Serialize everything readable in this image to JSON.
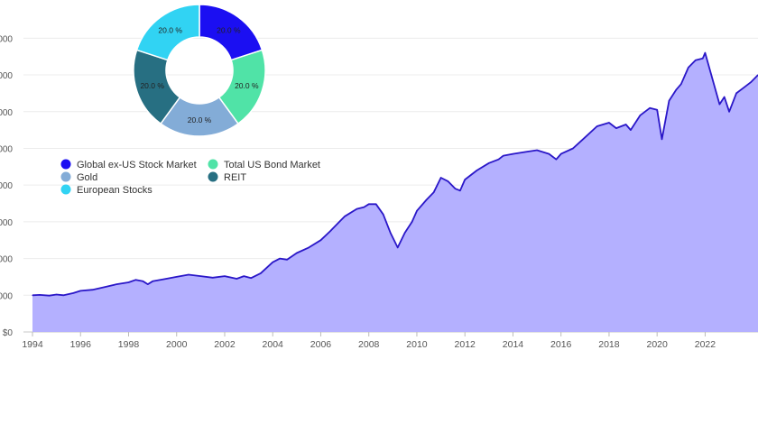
{
  "chart_data": [
    {
      "type": "area",
      "title": "",
      "xlabel": "",
      "ylabel": "",
      "y_tick_labels": [
        "$0",
        "000",
        "000",
        "000",
        "000",
        "000",
        "000",
        "000",
        "000"
      ],
      "y_tick_values": [
        0,
        1000,
        2000,
        3000,
        4000,
        5000,
        6000,
        7000,
        8000
      ],
      "ylim": [
        0,
        8500
      ],
      "xlim": [
        1994,
        2024.2
      ],
      "x_ticks": [
        "1994",
        "1996",
        "1998",
        "2000",
        "2002",
        "2004",
        "2006",
        "2008",
        "2010",
        "2012",
        "2014",
        "2016",
        "2018",
        "2020",
        "2022"
      ],
      "grid": true,
      "series": [
        {
          "color": "#2a17c8",
          "fill": "#b4b0ff",
          "x": [
            1994.0,
            1994.3,
            1994.7,
            1995.0,
            1995.3,
            1995.7,
            1996.0,
            1996.5,
            1997.0,
            1997.5,
            1998.0,
            1998.3,
            1998.6,
            1998.8,
            1999.0,
            1999.5,
            2000.0,
            2000.5,
            2001.0,
            2001.5,
            2002.0,
            2002.5,
            2002.8,
            2003.1,
            2003.5,
            2004.0,
            2004.3,
            2004.6,
            2005.0,
            2005.5,
            2006.0,
            2006.4,
            2006.7,
            2007.0,
            2007.5,
            2007.8,
            2008.0,
            2008.3,
            2008.6,
            2008.9,
            2009.2,
            2009.5,
            2009.8,
            2010.0,
            2010.4,
            2010.7,
            2011.0,
            2011.3,
            2011.6,
            2011.8,
            2012.0,
            2012.5,
            2013.0,
            2013.4,
            2013.6,
            2014.0,
            2014.5,
            2015.0,
            2015.5,
            2015.8,
            2016.0,
            2016.5,
            2017.0,
            2017.5,
            2018.0,
            2018.3,
            2018.7,
            2018.9,
            2019.3,
            2019.7,
            2020.0,
            2020.2,
            2020.5,
            2020.8,
            2021.0,
            2021.3,
            2021.6,
            2021.9,
            2022.0,
            2022.3,
            2022.6,
            2022.8,
            2023.0,
            2023.3,
            2023.6,
            2023.9,
            2024.2
          ],
          "values": [
            1000,
            1010,
            990,
            1020,
            1000,
            1060,
            1120,
            1150,
            1220,
            1300,
            1350,
            1420,
            1380,
            1300,
            1380,
            1440,
            1500,
            1560,
            1520,
            1480,
            1520,
            1450,
            1520,
            1470,
            1600,
            1900,
            2000,
            1970,
            2150,
            2300,
            2500,
            2750,
            2950,
            3150,
            3350,
            3400,
            3480,
            3480,
            3200,
            2700,
            2300,
            2700,
            3000,
            3300,
            3600,
            3800,
            4200,
            4100,
            3900,
            3850,
            4150,
            4400,
            4600,
            4700,
            4800,
            4850,
            4900,
            4950,
            4850,
            4700,
            4850,
            5000,
            5300,
            5600,
            5700,
            5550,
            5650,
            5500,
            5900,
            6100,
            6050,
            5250,
            6300,
            6600,
            6750,
            7200,
            7400,
            7450,
            7600,
            6900,
            6200,
            6400,
            6000,
            6500,
            6650,
            6800,
            7000
          ]
        }
      ]
    },
    {
      "type": "pie",
      "donut": true,
      "title": "",
      "legend_position": "below-left",
      "slices": [
        {
          "label": "Global ex-US Stock Market",
          "value": 20.0,
          "value_label": "20.0 %",
          "color": "#1b0ff2"
        },
        {
          "label": "Total US Bond Market",
          "value": 20.0,
          "value_label": "20.0 %",
          "color": "#50e3a7"
        },
        {
          "label": "Gold",
          "value": 20.0,
          "value_label": "20.0 %",
          "color": "#83acd7"
        },
        {
          "label": "REIT",
          "value": 20.0,
          "value_label": "20.0 %",
          "color": "#276f82"
        },
        {
          "label": "European Stocks",
          "value": 20.0,
          "value_label": "20.0 %",
          "color": "#31d3f3"
        }
      ]
    }
  ]
}
